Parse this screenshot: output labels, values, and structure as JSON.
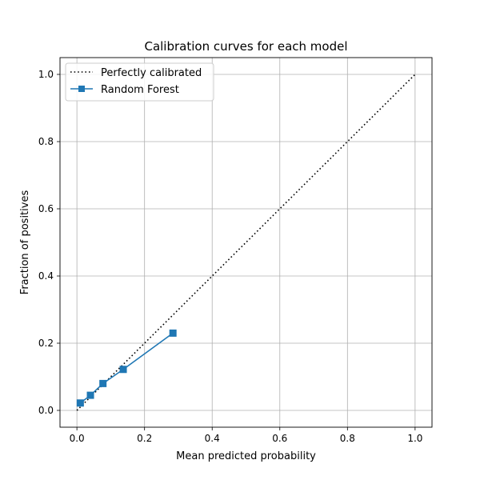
{
  "chart_data": {
    "type": "line",
    "title": "Calibration curves for each model",
    "xlabel": "Mean predicted probability",
    "ylabel": "Fraction of positives",
    "xlim": [
      -0.05,
      1.05
    ],
    "ylim": [
      -0.05,
      1.05
    ],
    "xticks": [
      "0.0",
      "0.2",
      "0.4",
      "0.6",
      "0.8",
      "1.0"
    ],
    "yticks": [
      "0.0",
      "0.2",
      "0.4",
      "0.6",
      "0.8",
      "1.0"
    ],
    "grid": true,
    "legend_position": "top-left",
    "series": [
      {
        "name": "Perfectly calibrated",
        "style": "dotted",
        "color": "#000000",
        "x": [
          0,
          1
        ],
        "y": [
          0,
          1
        ]
      },
      {
        "name": "Random Forest",
        "style": "solid",
        "marker": "square",
        "color": "#1f77b4",
        "x": [
          0.01,
          0.04,
          0.077,
          0.137,
          0.284
        ],
        "y": [
          0.022,
          0.045,
          0.08,
          0.122,
          0.23
        ]
      }
    ]
  }
}
